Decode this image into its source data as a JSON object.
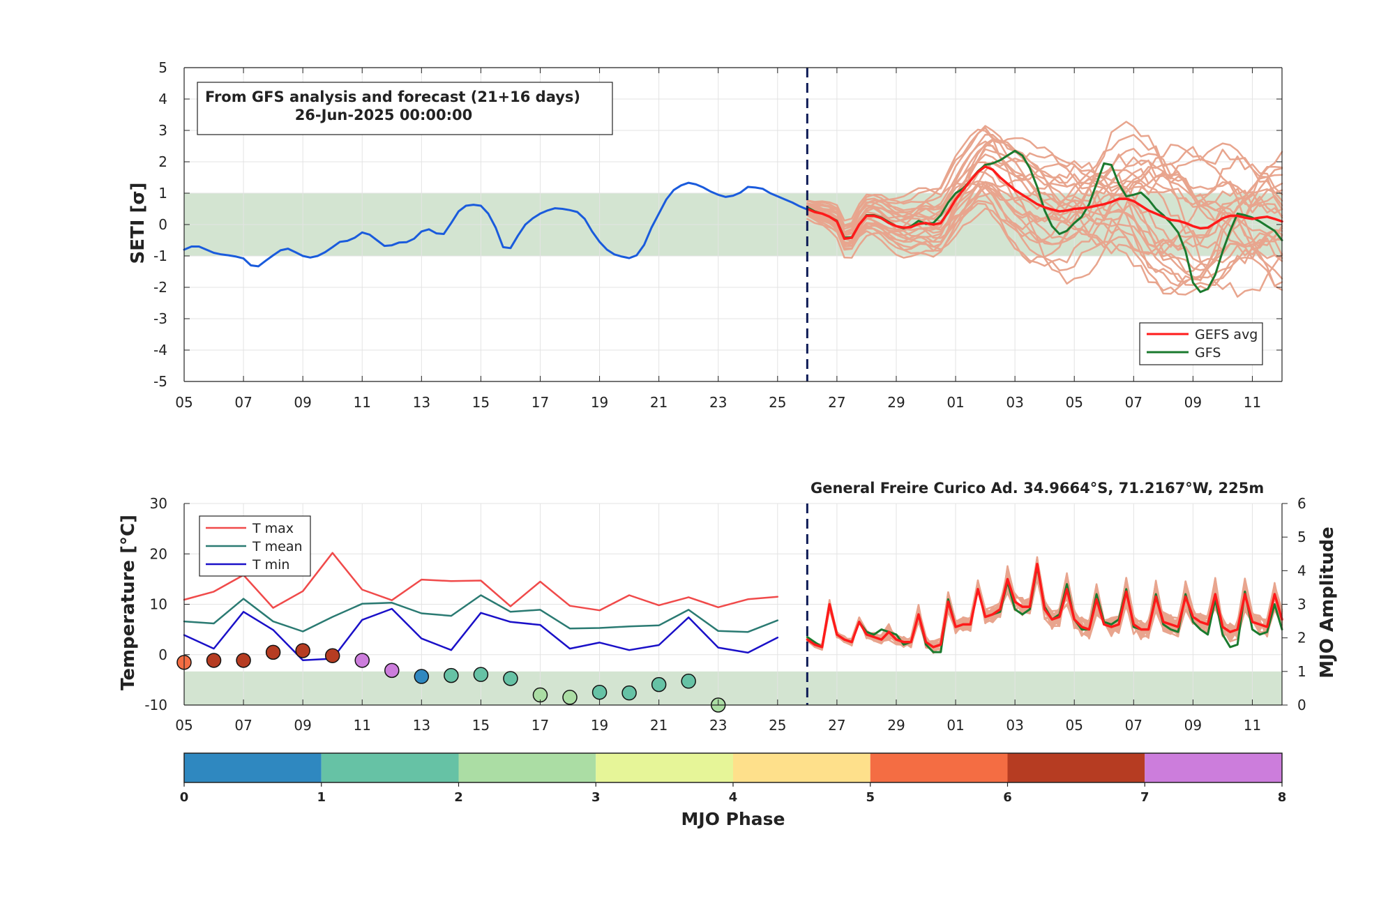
{
  "chart_data": [
    {
      "type": "line",
      "title": "",
      "ylabel": "SETI [σ]",
      "xlabel": "",
      "ylim": [
        -5,
        5
      ],
      "x_range_days": [
        0,
        37
      ],
      "x_ticks": [
        {
          "day": 0,
          "label": "05"
        },
        {
          "day": 2,
          "label": "07"
        },
        {
          "day": 4,
          "label": "09"
        },
        {
          "day": 6,
          "label": "11"
        },
        {
          "day": 8,
          "label": "13"
        },
        {
          "day": 10,
          "label": "15"
        },
        {
          "day": 12,
          "label": "17"
        },
        {
          "day": 14,
          "label": "19"
        },
        {
          "day": 16,
          "label": "21"
        },
        {
          "day": 18,
          "label": "23"
        },
        {
          "day": 20,
          "label": "25"
        },
        {
          "day": 22,
          "label": "27"
        },
        {
          "day": 24,
          "label": "29"
        },
        {
          "day": 26,
          "label": "01"
        },
        {
          "day": 28,
          "label": "03"
        },
        {
          "day": 30,
          "label": "05"
        },
        {
          "day": 32,
          "label": "07"
        },
        {
          "day": 34,
          "label": "09"
        },
        {
          "day": 36,
          "label": "11"
        }
      ],
      "y_ticks": [
        5,
        4,
        3,
        2,
        1,
        0,
        -1,
        -2,
        -3,
        -4,
        -5
      ],
      "shaded_band": [
        -1,
        1
      ],
      "forecast_start_day": 21,
      "annotation_line1": "From GFS analysis and forecast (21+16 days)",
      "annotation_line2": "26-Jun-2025 00:00:00",
      "legend": {
        "placement": "bottom-right",
        "entries": [
          "GEFS avg",
          "GFS"
        ]
      },
      "grid": true,
      "series": [
        {
          "name": "analysis",
          "color": "#1a5bdc",
          "x": [
            0,
            0.25,
            0.5,
            0.75,
            1,
            1.25,
            1.5,
            1.75,
            2,
            2.25,
            2.5,
            2.75,
            3,
            3.25,
            3.5,
            3.75,
            4,
            4.25,
            4.5,
            4.75,
            5,
            5.25,
            5.5,
            5.75,
            6,
            6.25,
            6.5,
            6.75,
            7,
            7.25,
            7.5,
            7.75,
            8,
            8.25,
            8.5,
            8.75,
            9,
            9.25,
            9.5,
            9.75,
            10,
            10.25,
            10.5,
            10.75,
            11,
            11.25,
            11.5,
            11.75,
            12,
            12.25,
            12.5,
            12.75,
            13,
            13.25,
            13.5,
            13.75,
            14,
            14.25,
            14.5,
            14.75,
            15,
            15.25,
            15.5,
            15.75,
            16,
            16.25,
            16.5,
            16.75,
            17,
            17.25,
            17.5,
            17.75,
            18,
            18.25,
            18.5,
            18.75,
            19,
            19.25,
            19.5,
            19.75,
            20,
            20.25,
            20.5,
            20.75,
            21
          ],
          "y": [
            -0.8,
            -0.7,
            -0.7,
            -0.8,
            -0.9,
            -0.95,
            -0.98,
            -1.02,
            -1.08,
            -1.3,
            -1.33,
            -1.15,
            -0.98,
            -0.82,
            -0.77,
            -0.88,
            -1.0,
            -1.05,
            -1.0,
            -0.88,
            -0.72,
            -0.55,
            -0.52,
            -0.42,
            -0.25,
            -0.32,
            -0.5,
            -0.68,
            -0.66,
            -0.57,
            -0.56,
            -0.45,
            -0.22,
            -0.15,
            -0.28,
            -0.3,
            0.05,
            0.42,
            0.6,
            0.63,
            0.6,
            0.35,
            -0.1,
            -0.72,
            -0.75,
            -0.35,
            0.0,
            0.2,
            0.35,
            0.45,
            0.52,
            0.5,
            0.46,
            0.4,
            0.18,
            -0.22,
            -0.55,
            -0.8,
            -0.95,
            -1.02,
            -1.07,
            -0.98,
            -0.65,
            -0.1,
            0.35,
            0.8,
            1.1,
            1.25,
            1.33,
            1.28,
            1.18,
            1.05,
            0.95,
            0.88,
            0.92,
            1.02,
            1.2,
            1.18,
            1.14,
            1.0,
            0.9,
            0.8,
            0.7,
            0.58,
            0.48
          ]
        },
        {
          "name": "GEFS avg",
          "color": "#ff1a1a",
          "x": [
            21,
            21.25,
            21.5,
            21.75,
            22,
            22.25,
            22.5,
            22.75,
            23,
            23.25,
            23.5,
            23.75,
            24,
            24.25,
            24.5,
            24.75,
            25,
            25.25,
            25.5,
            25.75,
            26,
            26.25,
            26.5,
            26.75,
            27,
            27.25,
            27.5,
            27.75,
            28,
            28.25,
            28.5,
            28.75,
            29,
            29.25,
            29.5,
            29.75,
            30,
            30.25,
            30.5,
            30.75,
            31,
            31.25,
            31.5,
            31.75,
            32,
            32.25,
            32.5,
            32.75,
            33,
            33.25,
            33.5,
            33.75,
            34,
            34.25,
            34.5,
            34.75,
            35,
            35.25,
            35.5,
            35.75,
            36,
            36.25,
            36.5,
            36.75,
            37
          ],
          "y": [
            0.5,
            0.4,
            0.35,
            0.25,
            0.1,
            -0.45,
            -0.42,
            0.0,
            0.28,
            0.28,
            0.2,
            0.05,
            -0.05,
            -0.1,
            -0.08,
            0.02,
            0.05,
            0.0,
            0.05,
            0.4,
            0.8,
            1.1,
            1.4,
            1.68,
            1.85,
            1.75,
            1.5,
            1.3,
            1.1,
            0.95,
            0.8,
            0.65,
            0.55,
            0.48,
            0.42,
            0.45,
            0.5,
            0.52,
            0.55,
            0.6,
            0.65,
            0.72,
            0.82,
            0.82,
            0.75,
            0.6,
            0.45,
            0.35,
            0.25,
            0.15,
            0.12,
            0.05,
            -0.05,
            -0.12,
            -0.1,
            0.05,
            0.2,
            0.28,
            0.28,
            0.22,
            0.18,
            0.22,
            0.25,
            0.18,
            0.1
          ]
        },
        {
          "name": "GFS",
          "color": "#1a7a2e",
          "x": [
            21,
            21.25,
            21.5,
            21.75,
            22,
            22.25,
            22.5,
            22.75,
            23,
            23.25,
            23.5,
            23.75,
            24,
            24.25,
            24.5,
            24.75,
            25,
            25.25,
            25.5,
            25.75,
            26,
            26.25,
            26.5,
            26.75,
            27,
            27.25,
            27.5,
            27.75,
            28,
            28.25,
            28.5,
            28.75,
            29,
            29.25,
            29.5,
            29.75,
            30,
            30.25,
            30.5,
            30.75,
            31,
            31.25,
            31.5,
            31.75,
            32,
            32.25,
            32.5,
            32.75,
            33,
            33.25,
            33.5,
            33.75,
            34,
            34.25,
            34.5,
            34.75,
            35,
            35.25,
            35.5,
            35.75,
            36,
            36.25,
            36.5,
            36.75,
            37
          ],
          "y": [
            0.55,
            0.42,
            0.35,
            0.25,
            0.12,
            -0.42,
            -0.4,
            0.0,
            0.3,
            0.3,
            0.22,
            0.08,
            -0.05,
            -0.12,
            -0.05,
            0.12,
            0.02,
            0.05,
            0.3,
            0.7,
            1.0,
            1.15,
            1.4,
            1.7,
            1.9,
            1.95,
            2.05,
            2.2,
            2.35,
            2.2,
            1.8,
            1.2,
            0.45,
            -0.05,
            -0.3,
            -0.2,
            0.05,
            0.25,
            0.65,
            1.3,
            1.95,
            1.9,
            1.3,
            0.9,
            0.95,
            1.02,
            0.8,
            0.5,
            0.3,
            0.05,
            -0.25,
            -0.85,
            -1.85,
            -2.15,
            -2.05,
            -1.6,
            -0.85,
            -0.2,
            0.35,
            0.3,
            0.22,
            0.1,
            -0.05,
            -0.2,
            -0.5
          ]
        }
      ]
    },
    {
      "type": "line",
      "title": "General Freire Curico Ad. 34.9664°S, 71.2167°W, 225m",
      "ylabel": "Temperature [°C]",
      "ylabel_right": "MJO Amplitude",
      "xlabel": "",
      "ylim": [
        -10,
        30
      ],
      "ylim_right": [
        0,
        6
      ],
      "y_ticks": [
        30,
        20,
        10,
        0,
        -10
      ],
      "y_ticks_right": [
        6,
        5,
        4,
        3,
        2,
        1,
        0
      ],
      "shaded_band_right": [
        0,
        1
      ],
      "forecast_start_day": 21,
      "legend": {
        "placement": "top-left",
        "entries": [
          "T max",
          "T mean",
          "T min"
        ]
      },
      "grid": true,
      "series": [
        {
          "name": "T max",
          "color": "#f04a4a",
          "x": [
            0,
            1,
            2,
            3,
            4,
            5,
            6,
            7,
            8,
            9,
            10,
            11,
            12,
            13,
            14,
            15,
            16,
            17,
            18,
            19,
            20
          ],
          "y": [
            10.9,
            12.5,
            15.8,
            9.3,
            12.6,
            20.2,
            12.9,
            10.8,
            14.9,
            14.6,
            14.7,
            9.6,
            14.5,
            9.7,
            8.8,
            11.8,
            9.8,
            11.4,
            9.4,
            11.0,
            11.5
          ]
        },
        {
          "name": "T mean",
          "color": "#2a7a72",
          "x": [
            0,
            1,
            2,
            3,
            4,
            5,
            6,
            7,
            8,
            9,
            10,
            11,
            12,
            13,
            14,
            15,
            16,
            17,
            18,
            19,
            20
          ],
          "y": [
            6.6,
            6.2,
            11.1,
            6.6,
            4.6,
            7.5,
            10.1,
            10.3,
            8.2,
            7.7,
            11.8,
            8.5,
            8.9,
            5.2,
            5.3,
            5.6,
            5.8,
            8.9,
            4.7,
            4.5,
            6.8
          ]
        },
        {
          "name": "T min",
          "color": "#1a10c8",
          "x": [
            0,
            1,
            2,
            3,
            4,
            5,
            6,
            7,
            8,
            9,
            10,
            11,
            12,
            13,
            14,
            15,
            16,
            17,
            18,
            19,
            20
          ],
          "y": [
            3.9,
            1.2,
            8.5,
            4.9,
            -1.1,
            -0.8,
            6.9,
            9.1,
            3.2,
            0.9,
            8.3,
            6.5,
            5.9,
            1.2,
            2.4,
            0.9,
            1.9,
            7.4,
            1.4,
            0.4,
            3.4
          ]
        },
        {
          "name": "GEFS avg",
          "color": "#ff1a1a",
          "x": [
            21,
            21.25,
            21.5,
            21.75,
            22,
            22.25,
            22.5,
            22.75,
            23,
            23.25,
            23.5,
            23.75,
            24,
            24.25,
            24.5,
            24.75,
            25,
            25.25,
            25.5,
            25.75,
            26,
            26.25,
            26.5,
            26.75,
            27,
            27.25,
            27.5,
            27.75,
            28,
            28.25,
            28.5,
            28.75,
            29,
            29.25,
            29.5,
            29.75,
            30,
            30.25,
            30.5,
            30.75,
            31,
            31.25,
            31.5,
            31.75,
            32,
            32.25,
            32.5,
            32.75,
            33,
            33.25,
            33.5,
            33.75,
            34,
            34.25,
            34.5,
            34.75,
            35,
            35.25,
            35.5,
            35.75,
            36,
            36.25,
            36.5,
            36.75,
            37
          ],
          "y": [
            3,
            2,
            1.5,
            10,
            4,
            3,
            2.5,
            6.5,
            4,
            3.5,
            3,
            4.5,
            3,
            2.5,
            2.5,
            8,
            2.5,
            1.5,
            2,
            10.5,
            5.5,
            6,
            6,
            13,
            7.5,
            8,
            9,
            15,
            10.5,
            9.5,
            9.5,
            18,
            9,
            7,
            7.5,
            13,
            7,
            5.5,
            5,
            11,
            6,
            5.5,
            6,
            12.5,
            6,
            5,
            5,
            11.5,
            6.5,
            6,
            5.5,
            11.5,
            7.5,
            6.5,
            6,
            12,
            5.5,
            4.5,
            5,
            12,
            6.5,
            6,
            5.5,
            12,
            7
          ]
        },
        {
          "name": "GFS",
          "color": "#1a7a2e",
          "x": [
            21,
            21.25,
            21.5,
            21.75,
            22,
            22.25,
            22.5,
            22.75,
            23,
            23.25,
            23.5,
            23.75,
            24,
            24.25,
            24.5,
            24.75,
            25,
            25.25,
            25.5,
            25.75,
            26,
            26.25,
            26.5,
            26.75,
            27,
            27.25,
            27.5,
            27.75,
            28,
            28.25,
            28.5,
            28.75,
            29,
            29.25,
            29.5,
            29.75,
            30,
            30.25,
            30.5,
            30.75,
            31,
            31.25,
            31.5,
            31.75,
            32,
            32.25,
            32.5,
            32.75,
            33,
            33.25,
            33.5,
            33.75,
            34,
            34.25,
            34.5,
            34.75,
            35,
            35.25,
            35.5,
            35.75,
            36,
            36.25,
            36.5,
            36.75,
            37
          ],
          "y": [
            3.5,
            2.5,
            1.5,
            10,
            4,
            3,
            2.5,
            6.5,
            4.5,
            4,
            5,
            4.5,
            4,
            2,
            2.5,
            8,
            2,
            0.5,
            0.5,
            11,
            5.5,
            6,
            6,
            13,
            7.5,
            8,
            8.5,
            14.5,
            9,
            8,
            9,
            17.5,
            9.5,
            7,
            8,
            14,
            7,
            5,
            5,
            12,
            6.5,
            6,
            7,
            13,
            5.5,
            5,
            5,
            12,
            6,
            5,
            4.5,
            12,
            6.5,
            5,
            4,
            11,
            4,
            1.5,
            2,
            12.5,
            5,
            4,
            4.5,
            10,
            5
          ]
        }
      ],
      "mjo_points": {
        "x": [
          0,
          1,
          2,
          3,
          4,
          5,
          6,
          7,
          8,
          9,
          10,
          11,
          12,
          13,
          14,
          15,
          16,
          17,
          18
        ],
        "amplitude": [
          1.27,
          1.33,
          1.33,
          1.57,
          1.62,
          1.47,
          1.33,
          1.03,
          0.85,
          0.88,
          0.91,
          0.79,
          0.3,
          0.23,
          0.38,
          0.36,
          0.61,
          0.71,
          0.0
        ],
        "phase": [
          5,
          6,
          6,
          6,
          6,
          6,
          7,
          7,
          0,
          1,
          1,
          1,
          2,
          2,
          1,
          1,
          1,
          1,
          2
        ]
      }
    },
    {
      "type": "heatmap",
      "xlabel": "MJO Phase",
      "ticks": [
        0,
        1,
        2,
        3,
        4,
        5,
        6,
        7,
        8
      ],
      "colors": [
        "#2f88c0",
        "#66c2a5",
        "#abdda4",
        "#e6f598",
        "#fee08b",
        "#f46d43",
        "#b63c22",
        "#cc7ddc"
      ]
    }
  ]
}
